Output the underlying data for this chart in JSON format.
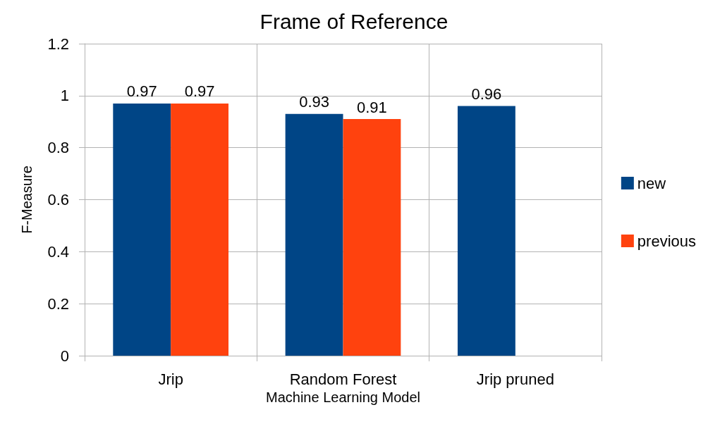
{
  "chart_data": {
    "type": "bar",
    "title": "Frame of Reference",
    "xlabel": "Machine Learning Model",
    "ylabel": "F-Measure",
    "categories": [
      "Jrip",
      "Random Forest",
      "Jrip pruned"
    ],
    "series": [
      {
        "name": "new",
        "color": "#004586",
        "values": [
          0.97,
          0.93,
          0.96
        ]
      },
      {
        "name": "previous",
        "color": "#ff420e",
        "values": [
          0.97,
          0.91,
          null
        ]
      }
    ],
    "ylim": [
      0,
      1.2
    ],
    "yticks": [
      0,
      0.2,
      0.4,
      0.6,
      0.8,
      1,
      1.2
    ],
    "grid": true,
    "legend": "right",
    "data_labels": true
  }
}
